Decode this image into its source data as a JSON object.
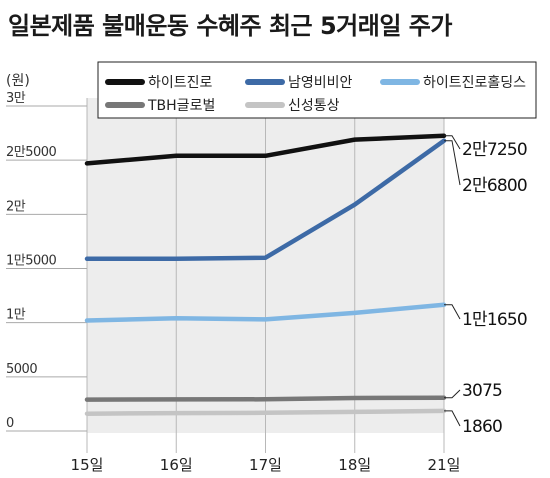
{
  "title": "일본제품 불매운동 수혜주 최근 5거래일 주가",
  "unit_label": "(원)",
  "chart_data": {
    "type": "line",
    "title": "일본제품 불매운동 수혜주 최근 5거래일 주가",
    "xlabel": "",
    "ylabel": "(원)",
    "categories": [
      "15일",
      "16일",
      "17일",
      "18일",
      "21일"
    ],
    "ylim": [
      0,
      30000
    ],
    "yticks": [
      0,
      5000,
      10000,
      15000,
      20000,
      25000,
      30000
    ],
    "ytick_labels": [
      "0",
      "5000",
      "1만",
      "1만5000",
      "2만",
      "2만5000",
      "3만"
    ],
    "grid": false,
    "legend_position": "top",
    "series": [
      {
        "name": "하이트진로",
        "color": "#111111",
        "values": [
          24700,
          25400,
          25400,
          26900,
          27250
        ]
      },
      {
        "name": "남영비비안",
        "color": "#3d6aa6",
        "values": [
          15900,
          15900,
          16000,
          20900,
          26800
        ]
      },
      {
        "name": "하이트진로홀딩스",
        "color": "#7fb6e3",
        "values": [
          10200,
          10400,
          10300,
          10900,
          11650
        ]
      },
      {
        "name": "TBH글로벌",
        "color": "#777777",
        "values": [
          2900,
          2920,
          2930,
          3050,
          3075
        ]
      },
      {
        "name": "신성통상",
        "color": "#c4c4c4",
        "values": [
          1600,
          1650,
          1680,
          1760,
          1860
        ]
      }
    ],
    "end_labels": [
      {
        "text": "2만7250",
        "value": 27250
      },
      {
        "text": "2만6800",
        "value": 26800
      },
      {
        "text": "1만1650",
        "value": 11650
      },
      {
        "text": "3075",
        "value": 3075
      },
      {
        "text": "1860",
        "value": 1860
      }
    ]
  }
}
